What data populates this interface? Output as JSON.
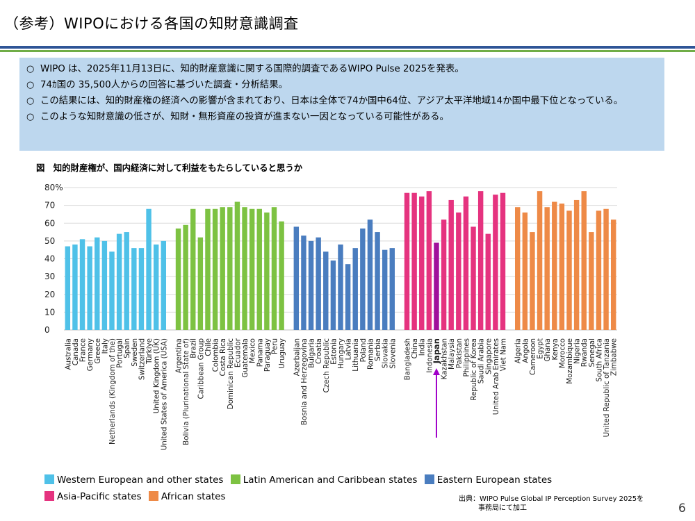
{
  "header": {
    "title": "（参考）WIPOにおける各国の知財意識調査"
  },
  "summary": {
    "bullet_mark": "○",
    "bullets": [
      "WIPO は、2025年11月13日に、知的財産意識に関する国際的調査であるWIPO Pulse 2025を発表。",
      "74ｶ国の 35,500人からの回答に基づいた調査・分析結果。",
      "この結果には、知的財産権の経済への影響が含まれており、日本は全体で74か国中64位、アジア太平洋地域14か国中最下位となっている。",
      "このような知財意識の低さが、知財・無形資産の投資が進まない一因となっている可能性がある。"
    ]
  },
  "chart_data": {
    "type": "bar",
    "title": "図　知的財産権が、国内経済に対して利益をもたらしていると思うか",
    "y_ticks": [
      "80%",
      "70",
      "60",
      "50",
      "40",
      "30",
      "20",
      "10",
      "0"
    ],
    "ylim": [
      0,
      80
    ],
    "grid": true,
    "legend_position": "bottom",
    "highlight": {
      "category": "Japan",
      "arrow_color": "#a000c8",
      "bar_color": "#a0109b"
    },
    "groups": [
      {
        "name": "Western European and other states",
        "color": "#4fc1e8",
        "categories": [
          "Australia",
          "Canada",
          "France",
          "Germany",
          "Greece",
          "Italy",
          "Netherlands (Kingdom of the)",
          "Portugal",
          "Spain",
          "Sweden",
          "Switzerland",
          "Türkiye",
          "United Kingdom (UK)",
          "United States of America (USA)"
        ],
        "values": [
          47,
          48,
          51,
          47,
          52,
          50,
          44,
          54,
          55,
          46,
          46,
          68,
          48,
          50
        ]
      },
      {
        "name": "Latin American and Caribbean states",
        "color": "#7dc242",
        "categories": [
          "Argentina",
          "Bolivia (Plurinational State of)",
          "Brazil",
          "Caribbean Group",
          "Chile",
          "Colombia",
          "Costa Rica",
          "Dominican Republic",
          "Ecuador",
          "Guatemala",
          "Mexico",
          "Panama",
          "Paraguay",
          "Peru",
          "Uruguay"
        ],
        "values": [
          57,
          59,
          68,
          52,
          68,
          68,
          69,
          69,
          72,
          69,
          68,
          68,
          66,
          69,
          61
        ]
      },
      {
        "name": "Eastern European states",
        "color": "#4a7dbf",
        "categories": [
          "Azerbaijan",
          "Bosnia and Herzegovina",
          "Bulgaria",
          "Croatia",
          "Czech Republic",
          "Estonia",
          "Hungary",
          "Latvia",
          "Lithuania",
          "Poland",
          "Romania",
          "Serbia",
          "Slovakia",
          "Slovenia"
        ],
        "values": [
          58,
          53,
          50,
          52,
          44,
          39,
          48,
          37,
          46,
          57,
          62,
          55,
          45,
          46
        ]
      },
      {
        "name": "Asia-Pacific states",
        "color": "#e5337f",
        "categories": [
          "Bangladesh",
          "China",
          "India",
          "Indonesia",
          "Japan",
          "Kazakhstan",
          "Malaysia",
          "Pakistan",
          "Philippines",
          "Republic of Korea",
          "Saudi Arabia",
          "Singapore",
          "United Arab Emirates",
          "Viet Nam"
        ],
        "values": [
          77,
          77,
          75,
          78,
          49,
          62,
          73,
          66,
          75,
          58,
          78,
          54,
          76,
          77
        ]
      },
      {
        "name": "African states",
        "color": "#ee8a47",
        "categories": [
          "Algeria",
          "Angola",
          "Cameroon",
          "Egypt",
          "Ghana",
          "Kenya",
          "Morocco",
          "Mozambique",
          "Nigeria",
          "Rwanda",
          "Senegal",
          "South Africa",
          "United Republic of Tanzania",
          "Zimbabwe"
        ],
        "values": [
          69,
          66,
          55,
          78,
          69,
          72,
          71,
          67,
          73,
          78,
          55,
          67,
          68,
          62
        ]
      }
    ]
  },
  "legend": {
    "items": [
      {
        "label": "Western European and other states",
        "color": "#4fc1e8"
      },
      {
        "label": "Latin American and Caribbean states",
        "color": "#7dc242"
      },
      {
        "label": "Eastern European states",
        "color": "#4a7dbf"
      },
      {
        "label": "Asia-Pacific states",
        "color": "#e5337f"
      },
      {
        "label": "African states",
        "color": "#ee8a47"
      }
    ]
  },
  "source": {
    "line1": "出典：WIPO Pulse Global IP Perception Survey 2025を",
    "line2": "事務局にて加工"
  },
  "page_number": "6"
}
